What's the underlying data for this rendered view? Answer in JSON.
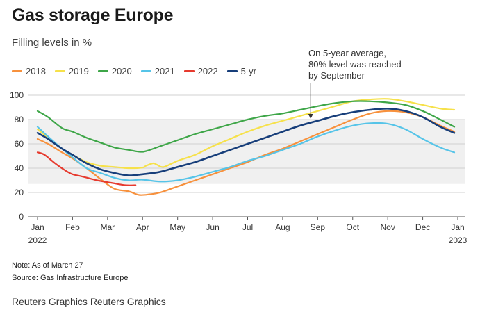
{
  "title": "Gas storage Europe",
  "subtitle": "Filling levels in %",
  "annotation": [
    "On 5-year average,",
    "80% level was reached",
    "by September"
  ],
  "note": "Note: As of March 27",
  "source": "Source: Gas Infrastructure Europe",
  "credit": "Reuters Graphics Reuters Graphics",
  "chart_data": {
    "type": "line",
    "title": "Gas storage Europe",
    "subtitle": "Filling levels in %",
    "xlabel": "",
    "ylabel": "",
    "ylim": [
      0,
      100
    ],
    "xlim": [
      0,
      12
    ],
    "yticks": [
      "0",
      "20",
      "40",
      "60",
      "80",
      "100"
    ],
    "ytick_values": [
      0,
      20,
      40,
      60,
      80,
      100
    ],
    "xticks": [
      {
        "label": "Jan",
        "sub": "2022",
        "x": 0
      },
      {
        "label": "Feb",
        "sub": "",
        "x": 1
      },
      {
        "label": "Mar",
        "sub": "",
        "x": 2
      },
      {
        "label": "Apr",
        "sub": "",
        "x": 3
      },
      {
        "label": "May",
        "sub": "",
        "x": 4
      },
      {
        "label": "Jun",
        "sub": "",
        "x": 5
      },
      {
        "label": "Jul",
        "sub": "",
        "x": 6
      },
      {
        "label": "Aug",
        "sub": "",
        "x": 7
      },
      {
        "label": "Sep",
        "sub": "",
        "x": 8
      },
      {
        "label": "Oct",
        "sub": "",
        "x": 9
      },
      {
        "label": "Nov",
        "sub": "",
        "x": 10
      },
      {
        "label": "Dec",
        "sub": "",
        "x": 11
      },
      {
        "label": "Jan",
        "sub": "2023",
        "x": 12
      }
    ],
    "band": {
      "from": 27,
      "to": 80
    },
    "grid": true,
    "annotation_point": {
      "x": 7.8,
      "y": 80
    },
    "series": [
      {
        "name": "2018",
        "color": "#f7913d",
        "x": [
          0,
          0.3,
          0.7,
          1,
          1.4,
          1.8,
          2.2,
          2.6,
          2.9,
          3.2,
          3.5,
          4,
          4.5,
          5,
          5.5,
          6,
          6.5,
          7,
          7.5,
          8,
          8.5,
          9,
          9.5,
          10,
          10.5,
          11,
          11.5,
          11.9
        ],
        "values": [
          64,
          60,
          53,
          48,
          40,
          31,
          23,
          21,
          18,
          18.5,
          20,
          25,
          30,
          35,
          40,
          45,
          51,
          56,
          62,
          68,
          74,
          80,
          85,
          87,
          86,
          82,
          75,
          70
        ]
      },
      {
        "name": "2019",
        "color": "#f6e14a",
        "x": [
          0,
          0.3,
          0.7,
          1,
          1.4,
          1.8,
          2.2,
          2.6,
          3,
          3.1,
          3.3,
          3.4,
          3.6,
          4,
          4.5,
          5,
          5.5,
          6,
          6.5,
          7,
          7.5,
          8,
          8.5,
          9,
          9.5,
          10,
          10.5,
          11,
          11.5,
          11.9
        ],
        "values": [
          72,
          65,
          56,
          51,
          45,
          42,
          41,
          40,
          40.5,
          42,
          44,
          43,
          41,
          46,
          51,
          58,
          64,
          70,
          75,
          79,
          83,
          87,
          91,
          95,
          96.5,
          97,
          95,
          92,
          89,
          88
        ]
      },
      {
        "name": "2020",
        "color": "#3ea648",
        "x": [
          0,
          0.3,
          0.7,
          1,
          1.4,
          1.8,
          2.2,
          2.6,
          2.9,
          3.1,
          3.5,
          4,
          4.5,
          5,
          5.5,
          6,
          6.5,
          7,
          7.5,
          8,
          8.5,
          9,
          9.5,
          10,
          10.5,
          11,
          11.5,
          11.9
        ],
        "values": [
          87,
          82,
          73,
          70,
          65,
          61,
          57,
          55,
          53.5,
          54,
          58,
          63,
          68,
          72,
          76,
          80,
          83,
          85,
          88,
          91,
          93.5,
          95,
          95,
          94,
          92,
          87,
          80,
          74
        ]
      },
      {
        "name": "2021",
        "color": "#56c4e8",
        "x": [
          0,
          0.3,
          0.7,
          1,
          1.4,
          1.8,
          2.2,
          2.6,
          3,
          3.5,
          4,
          4.5,
          5,
          5.5,
          6,
          6.5,
          7,
          7.5,
          8,
          8.5,
          9,
          9.5,
          10,
          10.5,
          11,
          11.5,
          11.9
        ],
        "values": [
          74,
          66,
          56,
          49,
          40,
          36,
          32,
          30,
          30.5,
          29,
          30,
          33,
          37,
          41,
          46,
          50,
          55,
          60,
          66,
          71,
          75,
          77,
          76.5,
          72,
          64,
          57,
          53
        ]
      },
      {
        "name": "2022",
        "color": "#e63a2e",
        "x": [
          0,
          0.2,
          0.5,
          0.8,
          1,
          1.3,
          1.7,
          2.1,
          2.5,
          2.8
        ],
        "values": [
          53,
          51,
          44,
          38,
          35,
          33,
          30,
          28,
          26,
          26
        ]
      },
      {
        "name": "5-yr",
        "color": "#173e7a",
        "x": [
          0,
          0.3,
          0.7,
          1,
          1.4,
          1.8,
          2.2,
          2.6,
          3,
          3.5,
          4,
          4.5,
          5,
          5.5,
          6,
          6.5,
          7,
          7.5,
          8,
          8.5,
          9,
          9.5,
          10,
          10.5,
          11,
          11.5,
          11.9
        ],
        "values": [
          69,
          64,
          56,
          51,
          44,
          39,
          36,
          34,
          35,
          37,
          41,
          45,
          50,
          55,
          60,
          65,
          70,
          75,
          79,
          83,
          86,
          88,
          89,
          87,
          82,
          74,
          69
        ]
      }
    ]
  }
}
